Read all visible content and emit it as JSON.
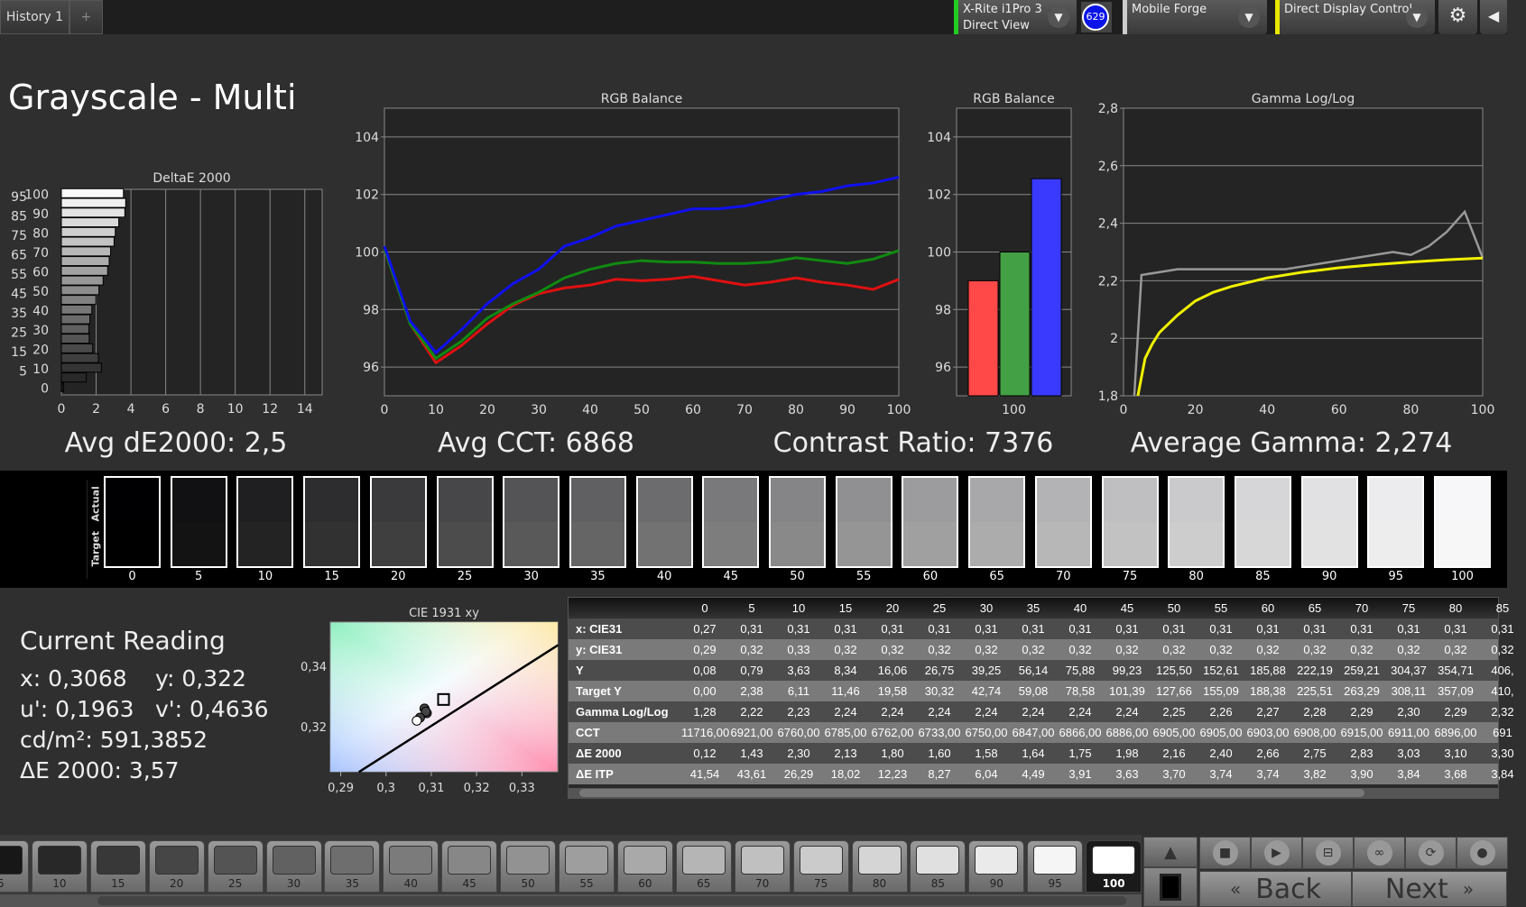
{
  "tabs": [
    {
      "label": "History 1"
    },
    {
      "label": "+"
    }
  ],
  "devices": {
    "meter": {
      "line1": "X-Rite i1Pro 3",
      "line2": "Direct View",
      "color": "#22cc22"
    },
    "badge": "629",
    "profile": {
      "line1": "Mobile Forge",
      "color": "#cccccc"
    },
    "control": {
      "line1": "Direct Display Control",
      "color": "#e8e800"
    }
  },
  "page_title": "Grayscale - Multi",
  "summary": {
    "avg_de": "Avg dE2000: 2,5",
    "avg_cct": "Avg CCT: 6868",
    "contrast": "Contrast Ratio: 7376",
    "avg_gamma": "Average Gamma: 2,274"
  },
  "chart_data": [
    {
      "type": "bar",
      "orientation": "horizontal",
      "title": "DeltaE 2000",
      "categories": [
        0,
        5,
        10,
        15,
        20,
        25,
        30,
        35,
        40,
        45,
        50,
        55,
        60,
        65,
        70,
        75,
        80,
        85,
        90,
        95,
        100
      ],
      "values": [
        0.12,
        1.43,
        2.3,
        2.13,
        1.8,
        1.6,
        1.58,
        1.64,
        1.75,
        1.98,
        2.16,
        2.4,
        2.66,
        2.75,
        2.83,
        3.03,
        3.1,
        3.3,
        3.65,
        3.7,
        3.57
      ],
      "xlim": [
        0,
        15
      ],
      "xticks": [
        0,
        2,
        4,
        6,
        8,
        10,
        12,
        14
      ],
      "grid": true
    },
    {
      "type": "line",
      "title": "RGB Balance",
      "x": [
        0,
        5,
        10,
        15,
        20,
        25,
        30,
        35,
        40,
        45,
        50,
        55,
        60,
        65,
        70,
        75,
        80,
        85,
        90,
        95,
        100
      ],
      "ylim": [
        95,
        105
      ],
      "yticks": [
        96,
        98,
        100,
        102,
        104
      ],
      "xticks": [
        0,
        10,
        20,
        30,
        40,
        50,
        60,
        70,
        80,
        90,
        100
      ],
      "series": [
        {
          "color": "#e01010",
          "values": [
            100.1,
            97.5,
            96.15,
            96.75,
            97.5,
            98.15,
            98.55,
            98.75,
            98.85,
            99.05,
            99.0,
            99.05,
            99.15,
            99.0,
            98.85,
            98.95,
            99.1,
            98.95,
            98.85,
            98.7,
            99.05
          ]
        },
        {
          "color": "#108a10",
          "values": [
            100.1,
            97.5,
            96.3,
            96.9,
            97.7,
            98.2,
            98.6,
            99.1,
            99.4,
            99.6,
            99.7,
            99.65,
            99.65,
            99.6,
            99.6,
            99.65,
            99.8,
            99.7,
            99.6,
            99.75,
            100.05
          ]
        },
        {
          "color": "#1010ee",
          "values": [
            100.2,
            97.6,
            96.5,
            97.3,
            98.2,
            98.9,
            99.4,
            100.2,
            100.5,
            100.9,
            101.1,
            101.3,
            101.5,
            101.5,
            101.6,
            101.8,
            102.0,
            102.1,
            102.3,
            102.4,
            102.6
          ]
        }
      ]
    },
    {
      "type": "bar",
      "title": "RGB Balance",
      "categories": [
        "100"
      ],
      "ylim": [
        95,
        105
      ],
      "yticks": [
        96,
        98,
        100,
        102,
        104
      ],
      "series": [
        {
          "color": "#ff4848",
          "values": [
            99.0
          ]
        },
        {
          "color": "#44a044",
          "values": [
            100.0
          ]
        },
        {
          "color": "#3a3aff",
          "values": [
            102.55
          ]
        }
      ]
    },
    {
      "type": "line",
      "title": "Gamma Log/Log",
      "ylim": [
        1.8,
        2.8
      ],
      "xlim": [
        0,
        100
      ],
      "yticks": [
        "1,8",
        "2",
        "2,2",
        "2,4",
        "2,6",
        "2,8"
      ],
      "xticks": [
        0,
        20,
        40,
        60,
        80,
        100
      ],
      "series": [
        {
          "color": "#999999",
          "x": [
            3,
            5,
            10,
            15,
            20,
            25,
            30,
            35,
            40,
            45,
            50,
            55,
            60,
            65,
            70,
            75,
            80,
            85,
            90,
            95,
            100
          ],
          "values": [
            1.8,
            2.22,
            2.23,
            2.24,
            2.24,
            2.24,
            2.24,
            2.24,
            2.24,
            2.24,
            2.25,
            2.26,
            2.27,
            2.28,
            2.29,
            2.3,
            2.29,
            2.32,
            2.37,
            2.44,
            2.28
          ]
        },
        {
          "color": "#f0f000",
          "x": [
            4,
            6,
            8,
            10,
            15,
            20,
            25,
            30,
            40,
            50,
            60,
            70,
            80,
            90,
            100
          ],
          "values": [
            1.8,
            1.93,
            1.98,
            2.02,
            2.08,
            2.13,
            2.16,
            2.18,
            2.21,
            2.23,
            2.245,
            2.256,
            2.265,
            2.273,
            2.279
          ]
        }
      ]
    },
    {
      "type": "scatter",
      "title": "CIE 1931 xy",
      "xlim": [
        0.2877,
        0.3379
      ],
      "ylim": [
        0.3051,
        0.3546
      ],
      "xticks": [
        "0,29",
        "0,3",
        "0,31",
        "0,32",
        "0,33"
      ],
      "yticks": [
        "0,32",
        "0,34"
      ],
      "target": [
        0.3127,
        0.329
      ],
      "points": [
        [
          0.3085,
          0.326
        ],
        [
          0.309,
          0.3245
        ],
        [
          0.3088,
          0.325
        ],
        [
          0.3075,
          0.323
        ],
        [
          0.3068,
          0.322
        ]
      ],
      "locus": [
        [
          0.294,
          0.305
        ],
        [
          0.338,
          0.347
        ]
      ]
    }
  ],
  "swatches": {
    "actual_label": "Actual",
    "target_label": "Target",
    "levels": [
      "0",
      "5",
      "10",
      "15",
      "20",
      "25",
      "30",
      "35",
      "40",
      "45",
      "50",
      "55",
      "60",
      "65",
      "70",
      "75",
      "80",
      "85",
      "90",
      "95",
      "100"
    ]
  },
  "reading": {
    "title": "Current Reading",
    "x": "x: 0,3068",
    "y": "y: 0,322",
    "u": "u': 0,1963",
    "v": "v': 0,4636",
    "cd": "cd/m²: 591,3852",
    "de": "ΔE 2000: 3,57"
  },
  "table": {
    "columns": [
      "0",
      "5",
      "10",
      "15",
      "20",
      "25",
      "30",
      "35",
      "40",
      "45",
      "50",
      "55",
      "60",
      "65",
      "70",
      "75",
      "80",
      "85"
    ],
    "rows": [
      {
        "label": "x: CIE31",
        "values": [
          "0,27",
          "0,31",
          "0,31",
          "0,31",
          "0,31",
          "0,31",
          "0,31",
          "0,31",
          "0,31",
          "0,31",
          "0,31",
          "0,31",
          "0,31",
          "0,31",
          "0,31",
          "0,31",
          "0,31",
          "0,31"
        ]
      },
      {
        "label": "y: CIE31",
        "values": [
          "0,29",
          "0,32",
          "0,33",
          "0,32",
          "0,32",
          "0,32",
          "0,32",
          "0,32",
          "0,32",
          "0,32",
          "0,32",
          "0,32",
          "0,32",
          "0,32",
          "0,32",
          "0,32",
          "0,32",
          "0,32"
        ]
      },
      {
        "label": "Y",
        "values": [
          "0,08",
          "0,79",
          "3,63",
          "8,34",
          "16,06",
          "26,75",
          "39,25",
          "56,14",
          "75,88",
          "99,23",
          "125,50",
          "152,61",
          "185,88",
          "222,19",
          "259,21",
          "304,37",
          "354,71",
          "406,"
        ]
      },
      {
        "label": "Target Y",
        "values": [
          "0,00",
          "2,38",
          "6,11",
          "11,46",
          "19,58",
          "30,32",
          "42,74",
          "59,08",
          "78,58",
          "101,39",
          "127,66",
          "155,09",
          "188,38",
          "225,51",
          "263,29",
          "308,11",
          "357,09",
          "410,"
        ]
      },
      {
        "label": "Gamma Log/Log",
        "values": [
          "1,28",
          "2,22",
          "2,23",
          "2,24",
          "2,24",
          "2,24",
          "2,24",
          "2,24",
          "2,24",
          "2,24",
          "2,25",
          "2,26",
          "2,27",
          "2,28",
          "2,29",
          "2,30",
          "2,29",
          "2,32"
        ]
      },
      {
        "label": "CCT",
        "values": [
          "11716,00",
          "6921,00",
          "6760,00",
          "6785,00",
          "6762,00",
          "6733,00",
          "6750,00",
          "6847,00",
          "6866,00",
          "6886,00",
          "6905,00",
          "6905,00",
          "6903,00",
          "6908,00",
          "6915,00",
          "6911,00",
          "6896,00",
          "691"
        ]
      },
      {
        "label": "ΔE 2000",
        "values": [
          "0,12",
          "1,43",
          "2,30",
          "2,13",
          "1,80",
          "1,60",
          "1,58",
          "1,64",
          "1,75",
          "1,98",
          "2,16",
          "2,40",
          "2,66",
          "2,75",
          "2,83",
          "3,03",
          "3,10",
          "3,30"
        ]
      },
      {
        "label": "ΔE ITP",
        "values": [
          "41,54",
          "43,61",
          "26,29",
          "18,02",
          "12,23",
          "8,27",
          "6,04",
          "4,49",
          "3,91",
          "3,63",
          "3,70",
          "3,74",
          "3,74",
          "3,82",
          "3,90",
          "3,84",
          "3,68",
          "3,84"
        ]
      }
    ]
  },
  "patches": {
    "levels": [
      "5",
      "10",
      "15",
      "20",
      "25",
      "30",
      "35",
      "40",
      "45",
      "50",
      "55",
      "60",
      "65",
      "70",
      "75",
      "80",
      "85",
      "90",
      "95",
      "100"
    ],
    "selected": "100"
  },
  "controls": {
    "back": "Back",
    "next": "Next",
    "icons": [
      "stop-icon",
      "play-icon",
      "measure-icon",
      "loop-icon",
      "refresh-icon",
      "circle-icon"
    ]
  }
}
